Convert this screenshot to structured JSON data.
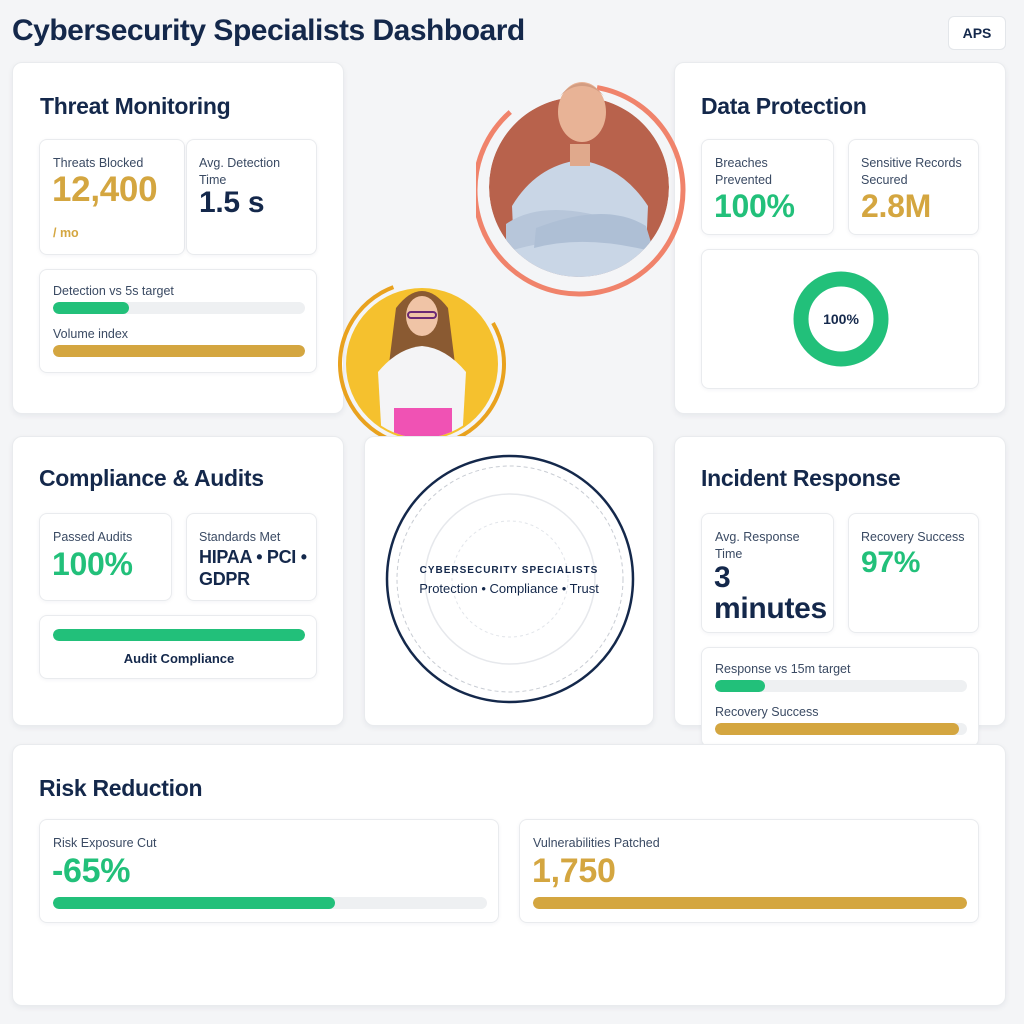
{
  "header": {
    "title": "Cybersecurity Specialists Dashboard",
    "aps_label": "APS"
  },
  "threat": {
    "title": "Threat Monitoring",
    "blocked_label": "Threats Blocked",
    "blocked_value": "12,400",
    "blocked_unit": "/ mo",
    "detection_label": "Avg. Detection Time",
    "detection_value": "1.5 s",
    "bar1_label": "Detection vs 5s target",
    "bar1_fraction": 0.3,
    "bar2_label": "Volume index",
    "bar2_fraction": 1.0
  },
  "data_protection": {
    "title": "Data Protection",
    "breaches_label": "Breaches Prevented",
    "breaches_value": "100%",
    "records_label": "Sensitive Records Secured",
    "records_value": "2.8M",
    "ring_label": "100%",
    "ring_fraction": 1.0
  },
  "compliance": {
    "title": "Compliance & Audits",
    "passed_label": "Passed Audits",
    "passed_value": "100%",
    "standards_label": "Standards Met",
    "standards_value": "HIPAA • PCI • GDPR",
    "bar_label": "Audit Compliance",
    "bar_fraction": 1.0
  },
  "center": {
    "title": "CYBERSECURITY SPECIALISTS",
    "subtitle": "Protection • Compliance • Trust"
  },
  "incident": {
    "title": "Incident Response",
    "response_label": "Avg. Response Time",
    "response_value": "3 minutes",
    "recovery_label": "Recovery Success",
    "recovery_value": "97%",
    "bar1_label": "Response vs 15m target",
    "bar1_fraction": 0.2,
    "bar2_label": "Recovery Success",
    "bar2_fraction": 0.97
  },
  "risk": {
    "title": "Risk Reduction",
    "exposure_label": "Risk Exposure Cut",
    "exposure_value": "-65%",
    "exposure_fraction": 0.65,
    "patched_label": "Vulnerabilities Patched",
    "patched_value": "1,750",
    "patched_fraction": 1.0
  },
  "colors": {
    "navy": "#14284b",
    "green": "#22c07a",
    "gold": "#d4a640",
    "coral": "#f0836b",
    "yellow": "#f5c12e"
  },
  "icons": {
    "avatar_man": "person-avatar-icon",
    "avatar_woman": "person-avatar-icon"
  }
}
